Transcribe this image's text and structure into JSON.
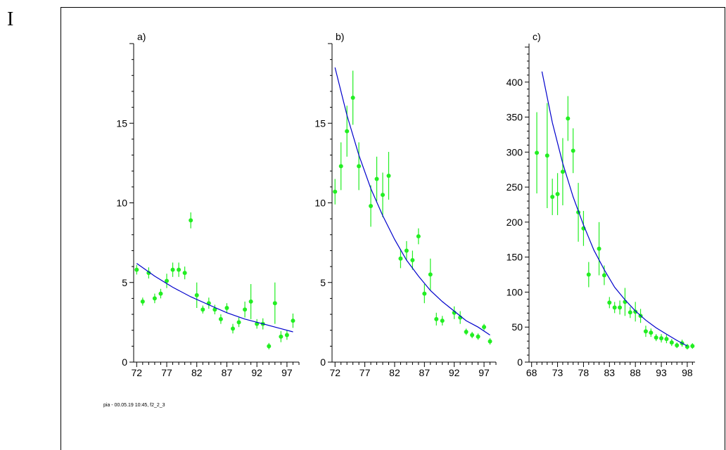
{
  "page": {
    "margin_mark": "I",
    "footer": "pia - 00.05.19  10:45,  f2_2_3"
  },
  "colors": {
    "points": "#22ee22",
    "fit": "#0000cc",
    "axes": "#000000"
  },
  "chart_data": [
    {
      "type": "scatter",
      "title": "a)",
      "xlim": [
        71.5,
        99
      ],
      "ylim": [
        0,
        20
      ],
      "xticks": [
        72,
        77,
        82,
        87,
        92,
        97
      ],
      "yticks": [
        0,
        5,
        10,
        15
      ],
      "series": [
        {
          "kind": "points",
          "x": [
            72,
            73,
            74,
            75,
            76,
            77,
            78,
            79,
            80,
            81,
            82,
            83,
            84,
            85,
            86,
            87,
            88,
            89,
            90,
            91,
            92,
            93,
            94,
            95,
            96,
            97,
            98
          ],
          "y": [
            5.8,
            3.8,
            5.6,
            4.0,
            4.3,
            5.1,
            5.8,
            5.8,
            5.6,
            8.9,
            4.2,
            3.3,
            3.7,
            3.3,
            2.7,
            3.4,
            2.1,
            2.5,
            3.3,
            3.8,
            2.4,
            2.4,
            1.0,
            3.7,
            1.6,
            1.7,
            2.6
          ],
          "err": [
            0.3,
            0.25,
            0.35,
            0.3,
            0.3,
            0.45,
            0.45,
            0.45,
            0.4,
            0.5,
            0.8,
            0.25,
            0.35,
            0.3,
            0.3,
            0.3,
            0.3,
            0.3,
            0.5,
            1.1,
            0.3,
            0.35,
            0.2,
            1.3,
            0.35,
            0.3,
            0.45
          ]
        },
        {
          "kind": "fit",
          "x": [
            72,
            75,
            78,
            81,
            84,
            87,
            90,
            93,
            96,
            98
          ],
          "y": [
            6.2,
            5.4,
            4.7,
            4.1,
            3.6,
            3.1,
            2.7,
            2.4,
            2.1,
            1.9
          ]
        }
      ]
    },
    {
      "type": "scatter",
      "title": "b)",
      "xlim": [
        71.5,
        99
      ],
      "ylim": [
        0,
        20
      ],
      "xticks": [
        72,
        77,
        82,
        87,
        92,
        97
      ],
      "yticks": [
        0,
        5,
        10,
        15
      ],
      "series": [
        {
          "kind": "points",
          "x": [
            72,
            73,
            74,
            75,
            76,
            78,
            79,
            80,
            81,
            83,
            84,
            85,
            86,
            87,
            88,
            89,
            90,
            92,
            93,
            94,
            95,
            96,
            97,
            98
          ],
          "y": [
            10.7,
            12.3,
            14.5,
            16.6,
            12.3,
            9.8,
            11.5,
            10.5,
            11.7,
            6.5,
            7.0,
            6.4,
            7.9,
            4.3,
            5.5,
            2.7,
            2.6,
            3.1,
            2.8,
            1.9,
            1.7,
            1.6,
            2.2,
            1.3
          ],
          "err": [
            0.8,
            1.5,
            1.6,
            1.7,
            1.5,
            1.3,
            1.4,
            1.4,
            1.5,
            0.6,
            0.6,
            0.6,
            0.5,
            0.6,
            1.0,
            0.4,
            0.3,
            0.4,
            0.4,
            0.2,
            0.2,
            0.2,
            0.2,
            0.2
          ]
        },
        {
          "kind": "fit",
          "x": [
            72,
            74,
            76,
            78,
            80,
            82,
            84,
            86,
            88,
            90,
            92,
            94,
            96,
            98
          ],
          "y": [
            18.5,
            15.5,
            13.0,
            10.9,
            9.2,
            7.7,
            6.4,
            5.4,
            4.5,
            3.8,
            3.2,
            2.6,
            2.2,
            1.7
          ]
        }
      ]
    },
    {
      "type": "scatter",
      "title": "c)",
      "xlim": [
        67.5,
        99.5
      ],
      "ylim": [
        0,
        455
      ],
      "xticks": [
        68,
        73,
        78,
        83,
        88,
        93,
        98
      ],
      "yticks": [
        0,
        50,
        100,
        150,
        200,
        250,
        300,
        350,
        400
      ],
      "series": [
        {
          "kind": "points",
          "x": [
            69,
            71,
            72,
            73,
            74,
            75,
            76,
            77,
            78,
            79,
            81,
            82,
            83,
            84,
            85,
            86,
            87,
            88,
            89,
            90,
            91,
            92,
            93,
            94,
            95,
            96,
            97,
            98,
            99
          ],
          "y": [
            299,
            295,
            236,
            240,
            272,
            348,
            302,
            214,
            191,
            125,
            162,
            124,
            85,
            78,
            78,
            86,
            71,
            72,
            66,
            44,
            42,
            35,
            34,
            33,
            28,
            24,
            27,
            22,
            23
          ],
          "err": [
            58,
            75,
            26,
            30,
            48,
            32,
            32,
            42,
            25,
            18,
            38,
            14,
            8,
            8,
            10,
            20,
            8,
            14,
            10,
            8,
            6,
            5,
            6,
            6,
            5,
            4,
            5,
            4,
            4
          ]
        },
        {
          "kind": "fit",
          "x": [
            70,
            72,
            74,
            76,
            78,
            80,
            82,
            84,
            86,
            88,
            90,
            92,
            94,
            96,
            98
          ],
          "y": [
            415,
            342,
            284,
            236,
            196,
            160,
            132,
            107,
            89,
            73,
            60,
            49,
            40,
            31,
            23
          ]
        }
      ]
    }
  ]
}
